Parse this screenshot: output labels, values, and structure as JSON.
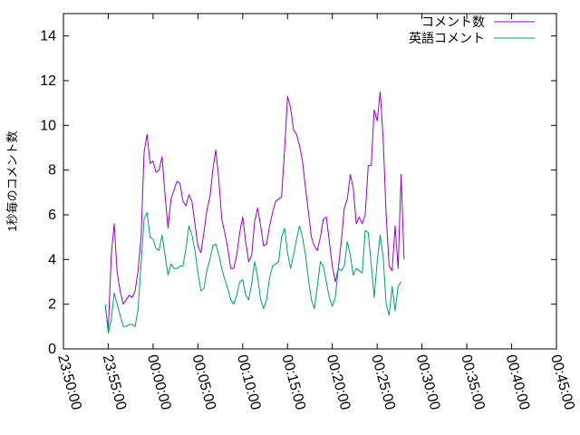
{
  "chart_data": {
    "type": "line",
    "ylabel": "1秒毎のコメント数",
    "xlabel": "",
    "title": "",
    "ylim": [
      0,
      15
    ],
    "yticks": [
      0,
      2,
      4,
      6,
      8,
      10,
      12,
      14
    ],
    "xlim": [
      "23:50:00",
      "00:45:00"
    ],
    "xticks": [
      "23:50:00",
      "23:55:00",
      "00:00:00",
      "00:05:00",
      "00:10:00",
      "00:15:00",
      "00:20:00",
      "00:25:00",
      "00:30:00",
      "00:35:00",
      "00:40:00",
      "00:45:00"
    ],
    "grid": false,
    "legend_position": "top-right",
    "series": [
      {
        "name": "コメント数",
        "color": "#9400d3",
        "points": [
          [
            "23:54:40",
            1.9
          ],
          [
            "23:55:00",
            0.9
          ],
          [
            "23:55:20",
            4.2
          ],
          [
            "23:55:40",
            5.6
          ],
          [
            "23:56:00",
            3.4
          ],
          [
            "23:56:20",
            2.6
          ],
          [
            "23:56:40",
            2.0
          ],
          [
            "23:57:00",
            2.2
          ],
          [
            "23:57:20",
            2.4
          ],
          [
            "23:57:40",
            2.3
          ],
          [
            "23:58:00",
            2.6
          ],
          [
            "23:58:20",
            3.5
          ],
          [
            "23:58:40",
            5.0
          ],
          [
            "23:59:00",
            8.8
          ],
          [
            "23:59:20",
            9.6
          ],
          [
            "23:59:40",
            8.3
          ],
          [
            "00:00:00",
            8.4
          ],
          [
            "00:00:20",
            7.9
          ],
          [
            "00:00:40",
            8.0
          ],
          [
            "00:01:00",
            8.6
          ],
          [
            "00:01:20",
            6.9
          ],
          [
            "00:01:40",
            5.4
          ],
          [
            "00:02:00",
            6.7
          ],
          [
            "00:02:20",
            7.1
          ],
          [
            "00:02:40",
            7.5
          ],
          [
            "00:03:00",
            7.4
          ],
          [
            "00:03:20",
            6.6
          ],
          [
            "00:03:40",
            6.4
          ],
          [
            "00:04:00",
            6.9
          ],
          [
            "00:04:20",
            6.6
          ],
          [
            "00:04:40",
            5.6
          ],
          [
            "00:05:00",
            4.6
          ],
          [
            "00:05:20",
            4.3
          ],
          [
            "00:05:40",
            5.2
          ],
          [
            "00:06:00",
            6.2
          ],
          [
            "00:06:20",
            6.8
          ],
          [
            "00:06:40",
            8.0
          ],
          [
            "00:07:00",
            8.9
          ],
          [
            "00:07:20",
            7.6
          ],
          [
            "00:07:40",
            5.8
          ],
          [
            "00:08:00",
            5.2
          ],
          [
            "00:08:20",
            4.5
          ],
          [
            "00:08:40",
            3.6
          ],
          [
            "00:09:00",
            3.6
          ],
          [
            "00:09:20",
            4.2
          ],
          [
            "00:09:40",
            5.2
          ],
          [
            "00:10:00",
            5.9
          ],
          [
            "00:10:20",
            4.8
          ],
          [
            "00:10:40",
            3.9
          ],
          [
            "00:11:00",
            4.2
          ],
          [
            "00:11:20",
            5.7
          ],
          [
            "00:11:40",
            6.3
          ],
          [
            "00:12:00",
            5.5
          ],
          [
            "00:12:20",
            4.6
          ],
          [
            "00:12:40",
            4.7
          ],
          [
            "00:13:00",
            5.5
          ],
          [
            "00:13:20",
            6.1
          ],
          [
            "00:13:40",
            6.6
          ],
          [
            "00:14:00",
            6.7
          ],
          [
            "00:14:20",
            6.8
          ],
          [
            "00:14:40",
            8.9
          ],
          [
            "00:15:00",
            11.3
          ],
          [
            "00:15:20",
            10.8
          ],
          [
            "00:15:40",
            9.8
          ],
          [
            "00:16:00",
            9.6
          ],
          [
            "00:16:20",
            9.1
          ],
          [
            "00:16:40",
            8.4
          ],
          [
            "00:17:00",
            7.2
          ],
          [
            "00:17:20",
            6.1
          ],
          [
            "00:17:40",
            5.0
          ],
          [
            "00:18:00",
            4.6
          ],
          [
            "00:18:20",
            4.4
          ],
          [
            "00:18:40",
            5.0
          ],
          [
            "00:19:00",
            5.8
          ],
          [
            "00:19:20",
            5.9
          ],
          [
            "00:19:40",
            4.8
          ],
          [
            "00:20:00",
            3.7
          ],
          [
            "00:20:20",
            3.0
          ],
          [
            "00:20:40",
            3.6
          ],
          [
            "00:21:00",
            4.8
          ],
          [
            "00:21:20",
            6.3
          ],
          [
            "00:21:40",
            6.7
          ],
          [
            "00:22:00",
            7.8
          ],
          [
            "00:22:20",
            7.2
          ],
          [
            "00:22:40",
            5.6
          ],
          [
            "00:23:00",
            5.9
          ],
          [
            "00:23:20",
            5.6
          ],
          [
            "00:23:40",
            6.0
          ],
          [
            "00:24:00",
            8.2
          ],
          [
            "00:24:20",
            8.2
          ],
          [
            "00:24:40",
            10.7
          ],
          [
            "00:25:00",
            10.2
          ],
          [
            "00:25:20",
            11.5
          ],
          [
            "00:25:40",
            9.4
          ],
          [
            "00:26:00",
            6.0
          ],
          [
            "00:26:20",
            3.7
          ],
          [
            "00:26:40",
            3.5
          ],
          [
            "00:27:00",
            5.5
          ],
          [
            "00:27:20",
            3.6
          ],
          [
            "00:27:40",
            7.8
          ],
          [
            "00:28:00",
            4.0
          ]
        ]
      },
      {
        "name": "英語コメント",
        "color": "#009e73",
        "points": [
          [
            "23:54:40",
            2.0
          ],
          [
            "23:55:00",
            0.7
          ],
          [
            "23:55:20",
            1.3
          ],
          [
            "23:55:40",
            2.5
          ],
          [
            "23:56:00",
            2.0
          ],
          [
            "23:56:20",
            1.5
          ],
          [
            "23:56:40",
            1.0
          ],
          [
            "23:57:00",
            1.0
          ],
          [
            "23:57:20",
            1.1
          ],
          [
            "23:57:40",
            1.1
          ],
          [
            "23:58:00",
            1.0
          ],
          [
            "23:58:20",
            1.8
          ],
          [
            "23:58:40",
            3.8
          ],
          [
            "23:59:00",
            5.8
          ],
          [
            "23:59:20",
            6.1
          ],
          [
            "23:59:40",
            5.0
          ],
          [
            "00:00:00",
            4.9
          ],
          [
            "00:00:20",
            4.5
          ],
          [
            "00:00:40",
            4.4
          ],
          [
            "00:01:00",
            5.1
          ],
          [
            "00:01:20",
            4.2
          ],
          [
            "00:01:40",
            3.3
          ],
          [
            "00:02:00",
            3.8
          ],
          [
            "00:02:20",
            3.6
          ],
          [
            "00:02:40",
            3.6
          ],
          [
            "00:03:00",
            3.7
          ],
          [
            "00:03:20",
            3.7
          ],
          [
            "00:03:40",
            4.5
          ],
          [
            "00:04:00",
            5.5
          ],
          [
            "00:04:20",
            5.1
          ],
          [
            "00:04:40",
            4.4
          ],
          [
            "00:05:00",
            3.4
          ],
          [
            "00:05:20",
            2.6
          ],
          [
            "00:05:40",
            2.7
          ],
          [
            "00:06:00",
            3.5
          ],
          [
            "00:06:20",
            4.0
          ],
          [
            "00:06:40",
            4.6
          ],
          [
            "00:07:00",
            4.7
          ],
          [
            "00:07:20",
            4.2
          ],
          [
            "00:07:40",
            3.6
          ],
          [
            "00:08:00",
            3.1
          ],
          [
            "00:08:20",
            2.7
          ],
          [
            "00:08:40",
            2.2
          ],
          [
            "00:09:00",
            2.0
          ],
          [
            "00:09:20",
            2.4
          ],
          [
            "00:09:40",
            3.0
          ],
          [
            "00:10:00",
            3.1
          ],
          [
            "00:10:20",
            2.4
          ],
          [
            "00:10:40",
            2.2
          ],
          [
            "00:11:00",
            2.9
          ],
          [
            "00:11:20",
            3.9
          ],
          [
            "00:11:40",
            3.2
          ],
          [
            "00:12:00",
            2.2
          ],
          [
            "00:12:20",
            1.8
          ],
          [
            "00:12:40",
            2.2
          ],
          [
            "00:13:00",
            3.2
          ],
          [
            "00:13:20",
            3.7
          ],
          [
            "00:13:40",
            3.8
          ],
          [
            "00:14:00",
            3.9
          ],
          [
            "00:14:20",
            5.0
          ],
          [
            "00:14:40",
            5.4
          ],
          [
            "00:15:00",
            4.3
          ],
          [
            "00:15:20",
            3.6
          ],
          [
            "00:15:40",
            4.2
          ],
          [
            "00:16:00",
            4.9
          ],
          [
            "00:16:20",
            5.5
          ],
          [
            "00:16:40",
            5.0
          ],
          [
            "00:17:00",
            4.2
          ],
          [
            "00:17:20",
            3.1
          ],
          [
            "00:17:40",
            2.2
          ],
          [
            "00:18:00",
            1.8
          ],
          [
            "00:18:20",
            2.8
          ],
          [
            "00:18:40",
            3.9
          ],
          [
            "00:19:00",
            3.7
          ],
          [
            "00:19:20",
            3.0
          ],
          [
            "00:19:40",
            2.3
          ],
          [
            "00:20:00",
            1.9
          ],
          [
            "00:20:20",
            2.3
          ],
          [
            "00:20:40",
            3.6
          ],
          [
            "00:21:00",
            3.5
          ],
          [
            "00:21:20",
            3.7
          ],
          [
            "00:21:40",
            4.8
          ],
          [
            "00:22:00",
            4.2
          ],
          [
            "00:22:20",
            3.3
          ],
          [
            "00:22:40",
            3.6
          ],
          [
            "00:23:00",
            3.5
          ],
          [
            "00:23:20",
            3.4
          ],
          [
            "00:23:40",
            5.3
          ],
          [
            "00:24:00",
            5.2
          ],
          [
            "00:24:20",
            3.8
          ],
          [
            "00:24:40",
            2.3
          ],
          [
            "00:25:00",
            3.9
          ],
          [
            "00:25:20",
            5.1
          ],
          [
            "00:25:40",
            4.1
          ],
          [
            "00:26:00",
            2.0
          ],
          [
            "00:26:20",
            1.5
          ],
          [
            "00:26:40",
            2.8
          ],
          [
            "00:27:00",
            1.7
          ],
          [
            "00:27:20",
            2.8
          ],
          [
            "00:27:40",
            3.0
          ]
        ]
      }
    ]
  }
}
